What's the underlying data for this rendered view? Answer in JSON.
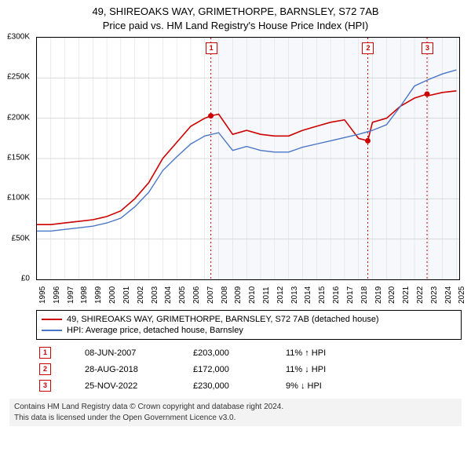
{
  "title_line1": "49, SHIREOAKS WAY, GRIMETHORPE, BARNSLEY, S72 7AB",
  "title_line2": "Price paid vs. HM Land Registry's House Price Index (HPI)",
  "chart": {
    "type": "line",
    "background_color": "#ffffff",
    "plot_border_color": "#000000",
    "grid_color": "#d9d9d9",
    "shaded_region": {
      "x_start": 2007.44,
      "x_end": 2025.2,
      "fill": "#f6f8fc"
    },
    "x": {
      "min": 1995,
      "max": 2025.2,
      "ticks": [
        1995,
        1996,
        1997,
        1998,
        1999,
        2000,
        2001,
        2002,
        2003,
        2004,
        2005,
        2006,
        2007,
        2008,
        2009,
        2010,
        2011,
        2012,
        2013,
        2014,
        2015,
        2016,
        2017,
        2018,
        2019,
        2020,
        2021,
        2022,
        2023,
        2024,
        2025
      ],
      "label_fontsize": 10
    },
    "y": {
      "min": 0,
      "max": 300000,
      "ticks": [
        0,
        50000,
        100000,
        150000,
        200000,
        250000,
        300000
      ],
      "tick_labels": [
        "£0",
        "£50K",
        "£100K",
        "£150K",
        "£200K",
        "£250K",
        "£300K"
      ],
      "label_fontsize": 10
    },
    "series": [
      {
        "name": "49, SHIREOAKS WAY, GRIMETHORPE, BARNSLEY, S72 7AB (detached house)",
        "color": "#cc0000",
        "line_width": 1.6,
        "data": [
          [
            1995,
            68000
          ],
          [
            1996,
            68000
          ],
          [
            1997,
            70000
          ],
          [
            1998,
            72000
          ],
          [
            1999,
            74000
          ],
          [
            2000,
            78000
          ],
          [
            2001,
            85000
          ],
          [
            2002,
            100000
          ],
          [
            2003,
            120000
          ],
          [
            2004,
            150000
          ],
          [
            2005,
            170000
          ],
          [
            2006,
            190000
          ],
          [
            2007,
            200000
          ],
          [
            2007.44,
            203000
          ],
          [
            2008,
            205000
          ],
          [
            2009,
            180000
          ],
          [
            2010,
            185000
          ],
          [
            2011,
            180000
          ],
          [
            2012,
            178000
          ],
          [
            2013,
            178000
          ],
          [
            2014,
            185000
          ],
          [
            2015,
            190000
          ],
          [
            2016,
            195000
          ],
          [
            2017,
            198000
          ],
          [
            2018,
            175000
          ],
          [
            2018.66,
            172000
          ],
          [
            2019,
            195000
          ],
          [
            2020,
            200000
          ],
          [
            2021,
            215000
          ],
          [
            2022,
            225000
          ],
          [
            2022.9,
            230000
          ],
          [
            2023,
            228000
          ],
          [
            2024,
            232000
          ],
          [
            2025,
            234000
          ]
        ]
      },
      {
        "name": "HPI: Average price, detached house, Barnsley",
        "color": "#4a76c7",
        "line_width": 1.4,
        "data": [
          [
            1995,
            60000
          ],
          [
            1996,
            60000
          ],
          [
            1997,
            62000
          ],
          [
            1998,
            64000
          ],
          [
            1999,
            66000
          ],
          [
            2000,
            70000
          ],
          [
            2001,
            76000
          ],
          [
            2002,
            90000
          ],
          [
            2003,
            108000
          ],
          [
            2004,
            135000
          ],
          [
            2005,
            152000
          ],
          [
            2006,
            168000
          ],
          [
            2007,
            178000
          ],
          [
            2008,
            182000
          ],
          [
            2009,
            160000
          ],
          [
            2010,
            165000
          ],
          [
            2011,
            160000
          ],
          [
            2012,
            158000
          ],
          [
            2013,
            158000
          ],
          [
            2014,
            164000
          ],
          [
            2015,
            168000
          ],
          [
            2016,
            172000
          ],
          [
            2017,
            176000
          ],
          [
            2018,
            180000
          ],
          [
            2019,
            185000
          ],
          [
            2020,
            192000
          ],
          [
            2021,
            215000
          ],
          [
            2022,
            240000
          ],
          [
            2023,
            248000
          ],
          [
            2024,
            255000
          ],
          [
            2025,
            260000
          ]
        ]
      }
    ],
    "sale_markers": [
      {
        "n": "1",
        "x": 2007.44,
        "y": 203000
      },
      {
        "n": "2",
        "x": 2018.66,
        "y": 172000
      },
      {
        "n": "3",
        "x": 2022.9,
        "y": 230000
      }
    ],
    "marker_line_color": "#cc0000",
    "marker_dot_color": "#cc0000",
    "marker_box_border": "#cc0000",
    "marker_box_text": "#cc0000"
  },
  "legend": {
    "items": [
      {
        "color": "#cc0000",
        "label": "49, SHIREOAKS WAY, GRIMETHORPE, BARNSLEY, S72 7AB (detached house)"
      },
      {
        "color": "#4a76c7",
        "label": "HPI: Average price, detached house, Barnsley"
      }
    ]
  },
  "sales_table": {
    "rows": [
      {
        "n": "1",
        "date": "08-JUN-2007",
        "price": "£203,000",
        "pct": "11%",
        "dir": "up",
        "suffix": "HPI"
      },
      {
        "n": "2",
        "date": "28-AUG-2018",
        "price": "£172,000",
        "pct": "11%",
        "dir": "down",
        "suffix": "HPI"
      },
      {
        "n": "3",
        "date": "25-NOV-2022",
        "price": "£230,000",
        "pct": "9%",
        "dir": "down",
        "suffix": "HPI"
      }
    ]
  },
  "footer_line1": "Contains HM Land Registry data © Crown copyright and database right 2024.",
  "footer_line2": "This data is licensed under the Open Government Licence v3.0."
}
